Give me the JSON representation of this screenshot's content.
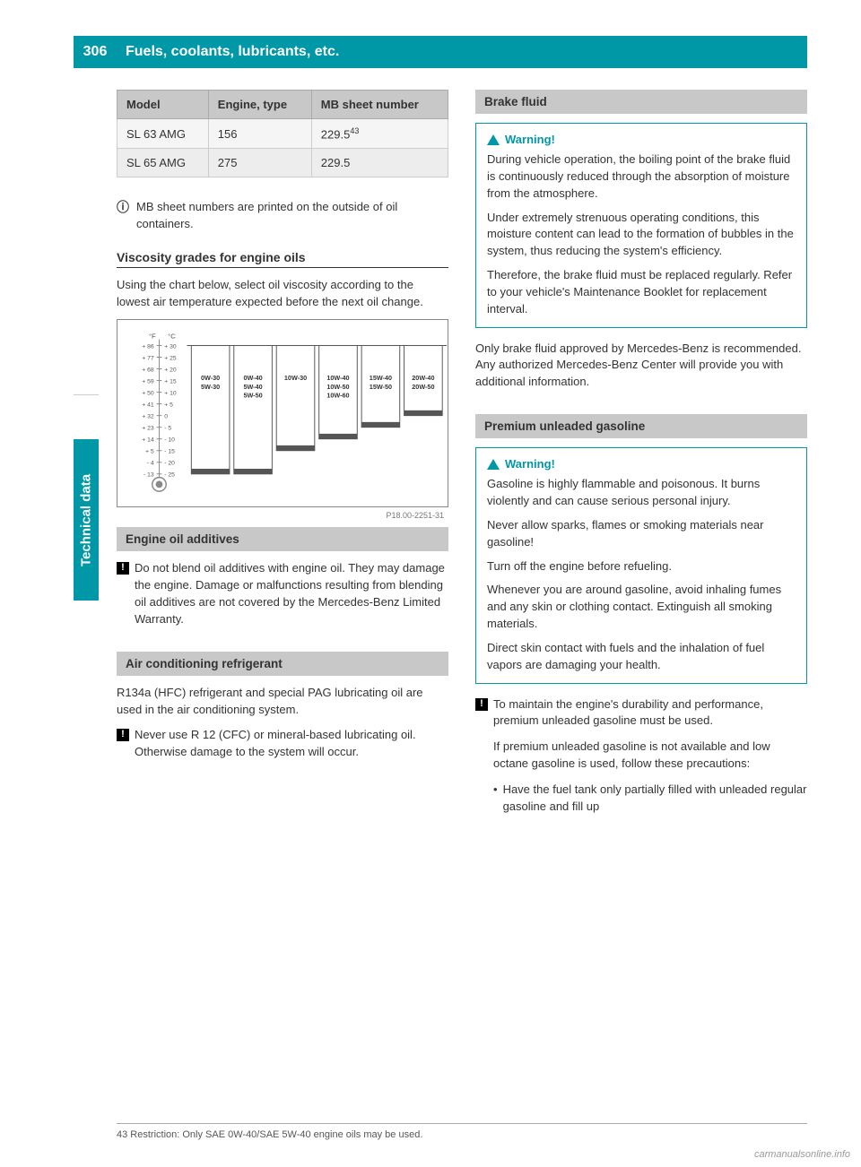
{
  "page_number": "306",
  "header_title": "Fuels, coolants, lubricants, etc.",
  "side_tab": "Technical data",
  "table": {
    "headers": [
      "Model",
      "Engine, type",
      "MB sheet number"
    ],
    "rows": [
      [
        "SL 63 AMG",
        "156",
        "229.5",
        "43"
      ],
      [
        "SL 65 AMG",
        "275",
        "229.5",
        ""
      ]
    ]
  },
  "info_note": "MB sheet numbers are printed on the outside of oil containers.",
  "viscosity": {
    "title": "Viscosity grades for engine oils",
    "intro": "Using the chart below, select oil viscosity according to the lowest air temperature expected before the next oil change.",
    "chart_id": "P18.00-2251-31",
    "f_scale": [
      "+ 86",
      "+ 77",
      "+ 68",
      "+ 59",
      "+ 50",
      "+ 41",
      "+ 32",
      "+ 23",
      "+ 14",
      "+  5",
      "-  4",
      "- 13"
    ],
    "c_scale": [
      "+ 30",
      "+ 25",
      "+ 20",
      "+ 15",
      "+ 10",
      "+  5",
      "   0",
      "-  5",
      "- 10",
      "- 15",
      "- 20",
      "- 25"
    ],
    "grades": [
      "0W-30\n5W-30",
      "0W-40\n5W-40\n5W-50",
      "10W-30",
      "10W-40\n10W-50\n10W-60",
      "15W-40\n15W-50",
      "20W-40\n20W-50"
    ]
  },
  "additives": {
    "title": "Engine oil additives",
    "text": "Do not blend oil additives with engine oil. They may damage the engine. Damage or malfunctions resulting from blending oil additives are not covered by the Mercedes-Benz Limited Warranty."
  },
  "ac": {
    "title": "Air conditioning refrigerant",
    "p1": "R134a (HFC) refrigerant and special PAG lubricating oil are used in the air conditioning system.",
    "p2": "Never use R 12 (CFC) or mineral-based lubricating oil. Otherwise damage to the system will occur."
  },
  "brake": {
    "title": "Brake fluid",
    "warn_label": "Warning!",
    "w1": "During vehicle operation, the boiling point of the brake fluid is continuously reduced through the absorption of moisture from the atmosphere.",
    "w2": "Under extremely strenuous operating conditions, this moisture content can lead to the formation of bubbles in the system, thus reducing the system's efficiency.",
    "w3": "Therefore, the brake fluid must be replaced regularly. Refer to your vehicle's Maintenance Booklet for replacement interval.",
    "p1": "Only brake fluid approved by Mercedes-Benz is recommended. Any authorized Mercedes-Benz Center will provide you with additional information."
  },
  "gasoline": {
    "title": "Premium unleaded gasoline",
    "warn_label": "Warning!",
    "w1": "Gasoline is highly flammable and poisonous. It burns violently and can cause serious personal injury.",
    "w2": "Never allow sparks, flames or smoking materials near gasoline!",
    "w3": "Turn off the engine before refueling.",
    "w4": "Whenever you are around gasoline, avoid inhaling fumes and any skin or clothing contact. Extinguish all smoking materials.",
    "w5": "Direct skin contact with fuels and the inhalation of fuel vapors are damaging your health.",
    "n1": "To maintain the engine's durability and performance, premium unleaded gasoline must be used.",
    "n2": "If premium unleaded gasoline is not available and low octane gasoline is used, follow these precautions:",
    "b1": "Have the fuel tank only partially filled with unleaded regular gasoline and fill up"
  },
  "footnote": "43 Restriction: Only SAE 0W-40/SAE 5W-40 engine oils may be used.",
  "watermark": "carmanualsonline.info",
  "colors": {
    "teal": "#0097a7",
    "gray_header": "#c8c8c8"
  }
}
